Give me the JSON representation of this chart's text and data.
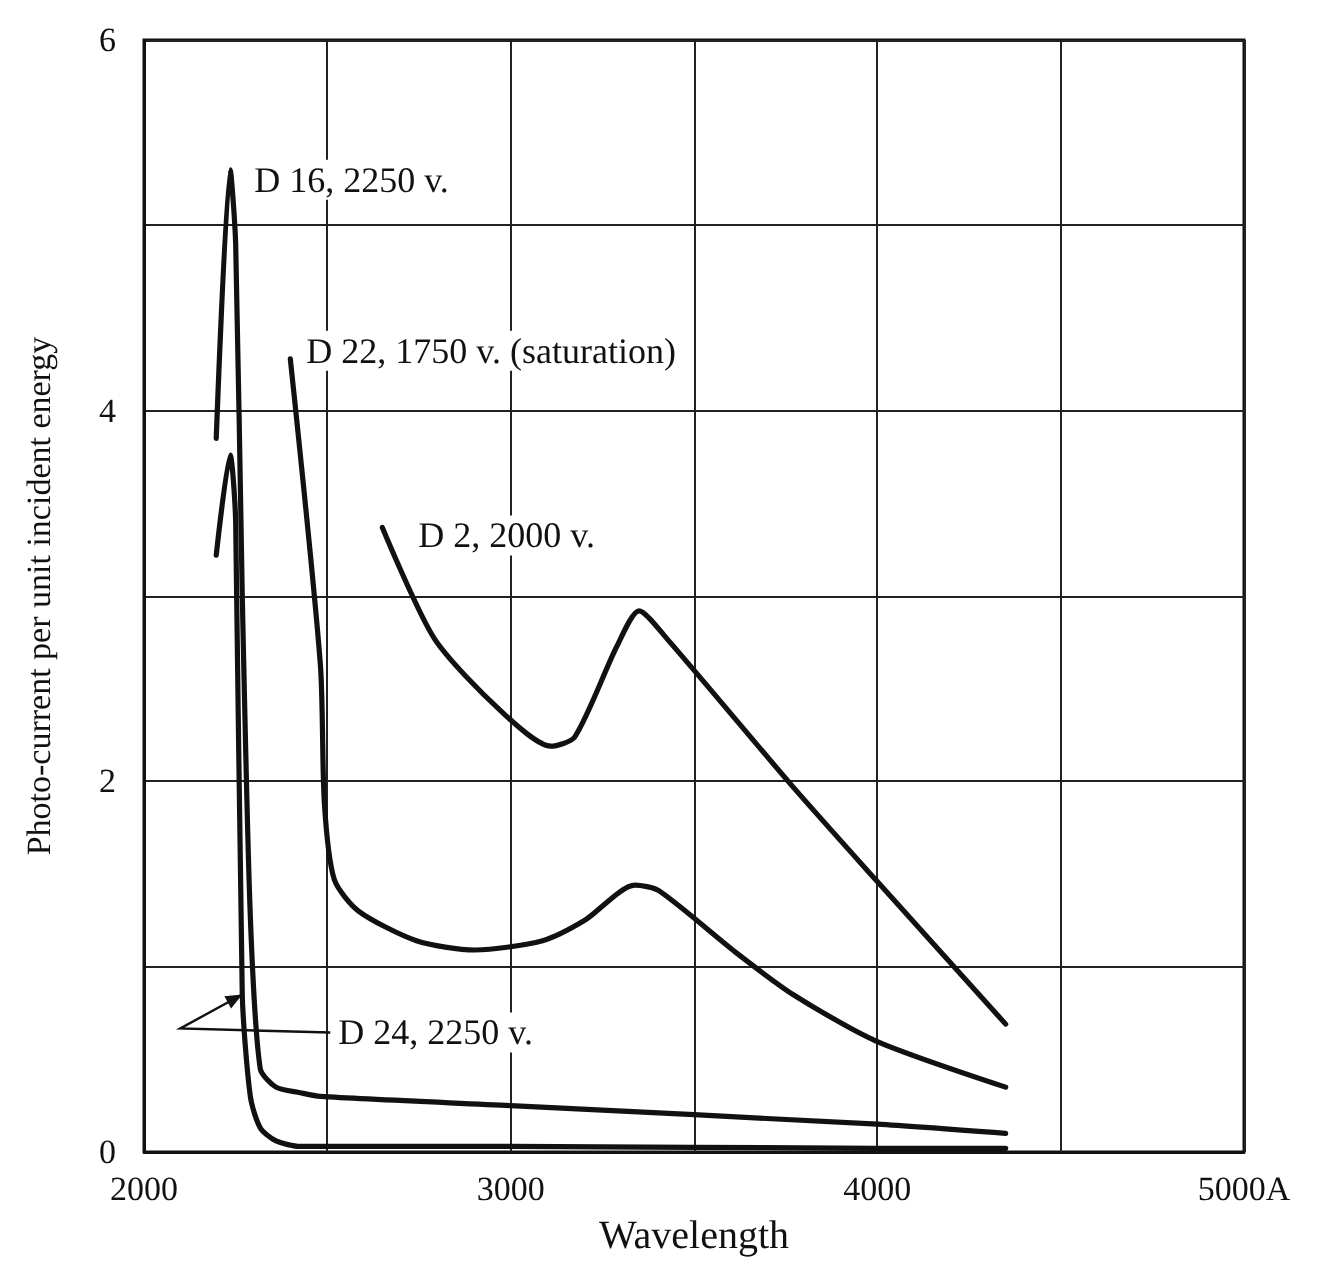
{
  "chart_data": {
    "type": "line",
    "xlabel": "Wavelength",
    "ylabel": "Photo-current per unit incident energy",
    "xlim": [
      2000,
      5000
    ],
    "ylim": [
      0,
      6
    ],
    "xticks": [
      2000,
      {
        "value": 2500,
        "label": null
      },
      3000,
      {
        "value": 3500,
        "label": null
      },
      4000,
      {
        "value": 4500,
        "label": null
      },
      {
        "value": 5000,
        "label": "5000A"
      }
    ],
    "yticks": [
      0,
      {
        "value": 1,
        "label": null
      },
      2,
      {
        "value": 3,
        "label": null
      },
      4,
      {
        "value": 5,
        "label": null
      },
      6
    ],
    "grid": true,
    "marker": "none",
    "line_style": "solid",
    "series": [
      {
        "color": "#111111",
        "x": [
          2197,
          2235,
          2250,
          2268,
          2290,
          2317,
          2360,
          2426,
          2481,
          3000,
          4000,
          4350
        ],
        "values": [
          3.85,
          5.3,
          4.9,
          3.0,
          1.27,
          0.45,
          0.35,
          0.32,
          0.3,
          0.25,
          0.15,
          0.1
        ]
      },
      {
        "color": "#111111",
        "x": [
          2197,
          2235,
          2250,
          2268,
          2290,
          2317,
          2360,
          2426,
          3000,
          4000,
          4350
        ],
        "values": [
          3.22,
          3.76,
          3.4,
          0.85,
          0.3,
          0.13,
          0.06,
          0.03,
          0.03,
          0.02,
          0.02
        ]
      },
      {
        "color": "#111111",
        "x": [
          2399,
          2481,
          2492,
          2519,
          2585,
          2743,
          2902,
          3087,
          3202,
          3339,
          3404,
          3612,
          3770,
          3995,
          4350
        ],
        "values": [
          4.28,
          2.63,
          1.88,
          1.47,
          1.3,
          1.14,
          1.09,
          1.14,
          1.25,
          1.44,
          1.41,
          1.08,
          0.85,
          0.6,
          0.35
        ]
      },
      {
        "color": "#111111",
        "x": [
          2650,
          2792,
          2973,
          3109,
          3175,
          3290,
          3350,
          3426,
          3770,
          3995,
          4350
        ],
        "values": [
          3.37,
          2.77,
          2.38,
          2.19,
          2.24,
          2.73,
          2.92,
          2.77,
          1.97,
          1.47,
          0.69
        ]
      }
    ],
    "annotations": [
      {
        "text": "D 16, 2250 v.",
        "x": 2235,
        "y": 5.3
      },
      {
        "text": "D 22, 1750 v. (saturation)",
        "x": 2399,
        "y": 4.28
      },
      {
        "text": "D 2, 2000 v.",
        "x": 2650,
        "y": 3.37
      },
      {
        "text": "D 24, 2250 v.",
        "x": 2268,
        "y": 0.85
      }
    ]
  }
}
